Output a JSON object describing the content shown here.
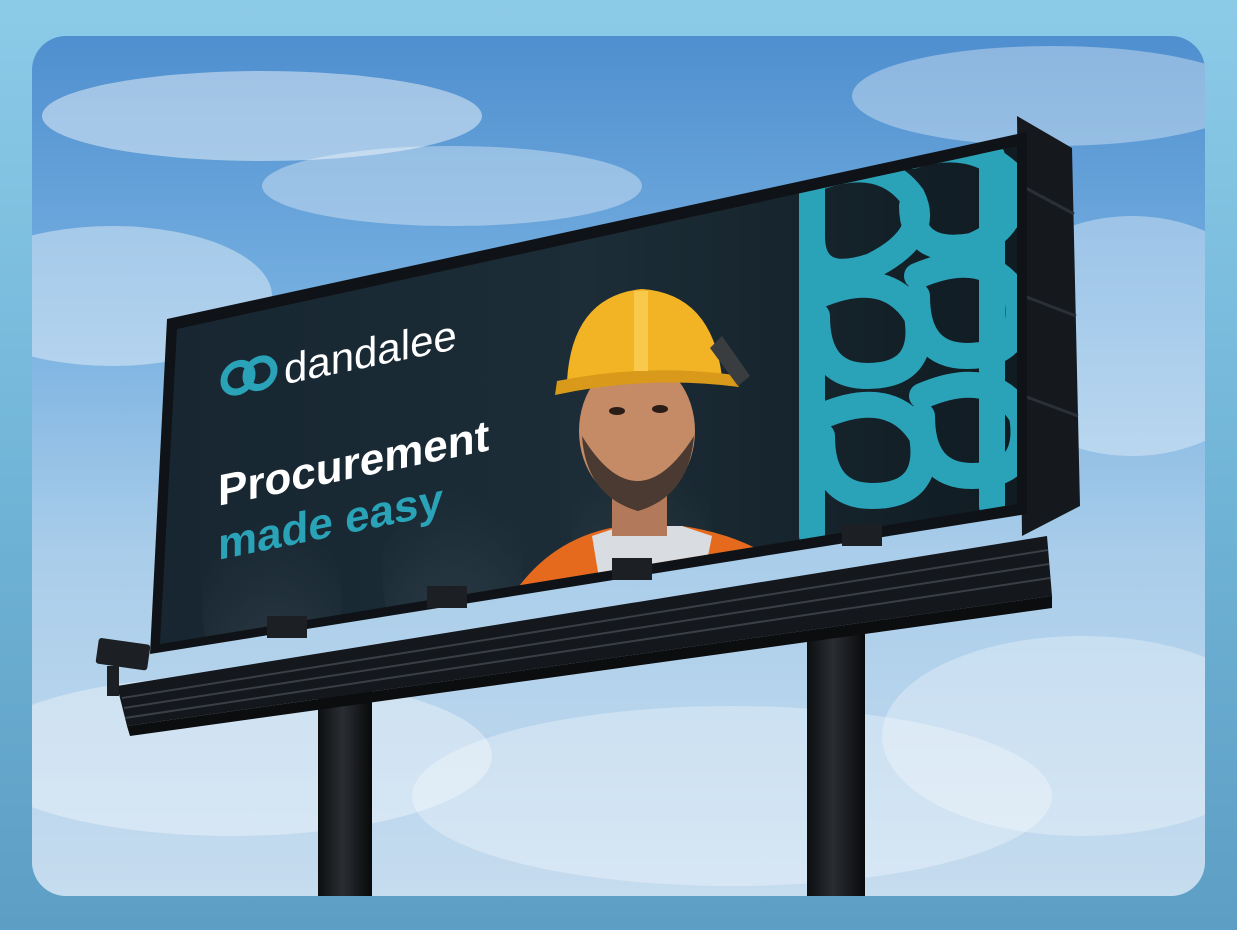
{
  "billboard": {
    "brand_name": "dandalee",
    "headline_line1": "Procurement",
    "headline_line2": "made easy"
  },
  "colors": {
    "panel_background": "#16252e",
    "brand_accent": "#2aa3b8",
    "headline_white": "#ffffff",
    "hardhat_yellow": "#f2b324",
    "safety_vest_orange": "#e66a1e",
    "frame_black": "#111418"
  },
  "icons": {
    "brand_logo": "interlocked-d-logo-icon",
    "pattern": "dd-monogram-pattern"
  }
}
